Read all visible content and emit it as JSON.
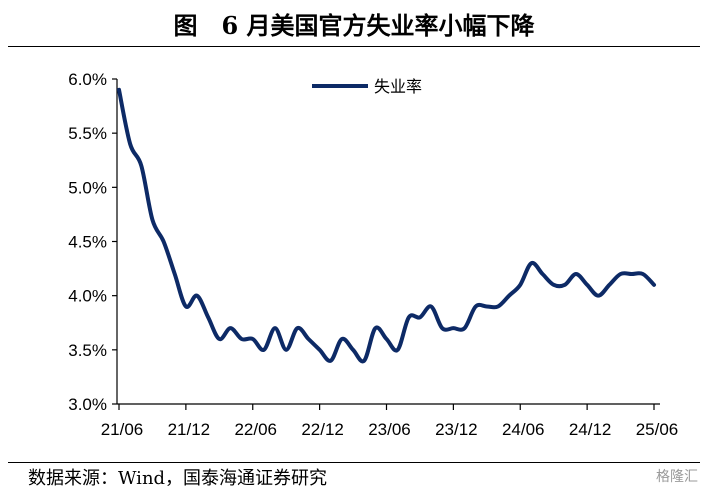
{
  "header": {
    "title": "图　6 月美国官方失业率小幅下降"
  },
  "footer": {
    "source": "数据来源：Wind，国泰海通证券研究",
    "watermark": "格隆汇"
  },
  "colors": {
    "series": "#0d2a66",
    "axis": "#000000"
  },
  "chart_data": {
    "type": "line",
    "title": "6 月美国官方失业率小幅下降",
    "xlabel": "",
    "ylabel": "",
    "ylim": [
      3.0,
      6.0
    ],
    "yticks": [
      "3.0%",
      "3.5%",
      "4.0%",
      "4.5%",
      "5.0%",
      "5.5%",
      "6.0%"
    ],
    "xticks": [
      "21/06",
      "21/12",
      "22/06",
      "22/12",
      "23/06",
      "23/12",
      "24/06",
      "24/12",
      "25/06"
    ],
    "grid": false,
    "legend_position": "top-center",
    "x": [
      "21/06",
      "21/07",
      "21/08",
      "21/09",
      "21/10",
      "21/11",
      "21/12",
      "22/01",
      "22/02",
      "22/03",
      "22/04",
      "22/05",
      "22/06",
      "22/07",
      "22/08",
      "22/09",
      "22/10",
      "22/11",
      "22/12",
      "23/01",
      "23/02",
      "23/03",
      "23/04",
      "23/05",
      "23/06",
      "23/07",
      "23/08",
      "23/09",
      "23/10",
      "23/11",
      "23/12",
      "24/01",
      "24/02",
      "24/03",
      "24/04",
      "24/05",
      "24/06",
      "24/07",
      "24/08",
      "24/09",
      "24/10",
      "24/11",
      "24/12",
      "25/01",
      "25/02",
      "25/03",
      "25/04",
      "25/05",
      "25/06"
    ],
    "series": [
      {
        "name": "失业率",
        "values": [
          5.9,
          5.4,
          5.2,
          4.7,
          4.5,
          4.2,
          3.9,
          4.0,
          3.8,
          3.6,
          3.7,
          3.6,
          3.6,
          3.5,
          3.7,
          3.5,
          3.7,
          3.6,
          3.5,
          3.4,
          3.6,
          3.5,
          3.4,
          3.7,
          3.6,
          3.5,
          3.8,
          3.8,
          3.9,
          3.7,
          3.7,
          3.7,
          3.9,
          3.9,
          3.9,
          4.0,
          4.1,
          4.3,
          4.2,
          4.1,
          4.1,
          4.2,
          4.1,
          4.0,
          4.1,
          4.2,
          4.2,
          4.2,
          4.1
        ]
      }
    ]
  }
}
